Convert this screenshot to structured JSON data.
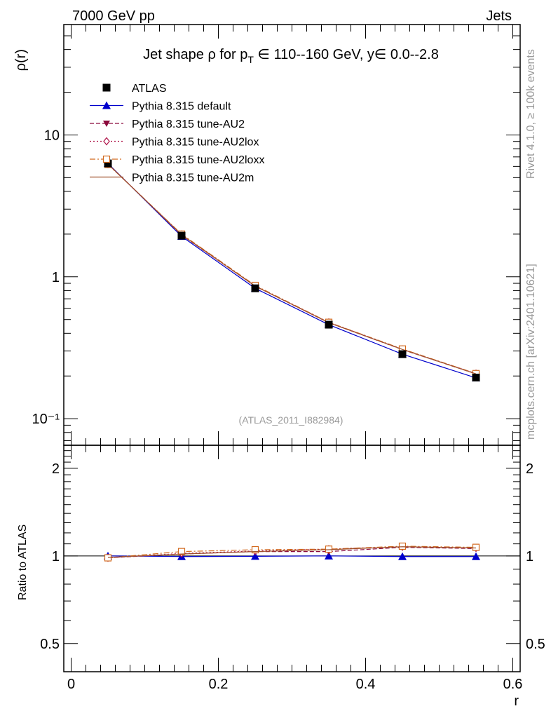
{
  "header": {
    "left": "7000 GeV pp",
    "right": "Jets"
  },
  "side_labels": {
    "rivet": "Rivet 4.1.0, ≥ 100k events",
    "mcplots": "mcplots.cern.ch [arXiv:2401.10621]"
  },
  "chart_data": [
    {
      "type": "line",
      "panel": "main",
      "title": "Jet shape ρ for p_T ∈ 110--160 GeV, y∈ 0.0--2.8",
      "title_parts": {
        "pre": "Jet shape ρ for p",
        "sub": "T",
        "post": " ∈ 110--160 GeV, y∈ 0.0--2.8"
      },
      "ylabel": "ρ(r)",
      "yscale": "log",
      "ylim": [
        0.065,
        60
      ],
      "xlim": [
        -0.01,
        0.61
      ],
      "yticks": [
        {
          "value": 10,
          "label": "10"
        },
        {
          "value": 1,
          "label": "1"
        },
        {
          "value": 0.1,
          "label": "10⁻¹"
        }
      ],
      "watermark": "(ATLAS_2011_I882984)",
      "x": [
        0.05,
        0.15,
        0.25,
        0.35,
        0.45,
        0.55
      ],
      "series": [
        {
          "name": "ATLAS",
          "color": "#000000",
          "marker": "square-filled",
          "line": "none",
          "values": [
            6.3,
            1.95,
            0.83,
            0.46,
            0.285,
            0.195
          ]
        },
        {
          "name": "Pythia 8.315 default",
          "color": "#0000cc",
          "marker": "triangle-up-filled",
          "line": "solid",
          "values": [
            6.3,
            1.93,
            0.83,
            0.46,
            0.285,
            0.194
          ]
        },
        {
          "name": "Pythia 8.315 tune-AU2",
          "color": "#8b0a3c",
          "marker": "triangle-down-filled",
          "line": "dashed",
          "values": [
            6.25,
            1.97,
            0.86,
            0.475,
            0.307,
            0.207
          ]
        },
        {
          "name": "Pythia 8.315 tune-AU2lox",
          "color": "#b0154a",
          "marker": "diamond-open",
          "line": "dotted",
          "values": [
            6.22,
            1.99,
            0.86,
            0.478,
            0.308,
            0.208
          ]
        },
        {
          "name": "Pythia 8.315 tune-AU2loxx",
          "color": "#d2691e",
          "marker": "square-open",
          "line": "dashdot",
          "values": [
            6.2,
            2.0,
            0.87,
            0.478,
            0.31,
            0.208
          ]
        },
        {
          "name": "Pythia 8.315 tune-AU2m",
          "color": "#a0522d",
          "marker": "none",
          "line": "solid",
          "values": [
            6.23,
            1.98,
            0.86,
            0.475,
            0.308,
            0.207
          ]
        }
      ]
    },
    {
      "type": "line",
      "panel": "ratio",
      "ylabel": "Ratio to ATLAS",
      "xlabel": "r",
      "yscale": "log",
      "ylim": [
        0.4,
        2.4
      ],
      "xlim": [
        -0.01,
        0.61
      ],
      "yticks": [
        {
          "value": 2,
          "label": "2"
        },
        {
          "value": 1,
          "label": "1"
        },
        {
          "value": 0.5,
          "label": "0.5"
        }
      ],
      "xticks": [
        {
          "value": 0,
          "label": "0"
        },
        {
          "value": 0.2,
          "label": "0.2"
        },
        {
          "value": 0.4,
          "label": "0.4"
        },
        {
          "value": 0.6,
          "label": "0.6"
        }
      ],
      "reference": 1,
      "x": [
        0.05,
        0.15,
        0.25,
        0.35,
        0.45,
        0.55
      ],
      "series": [
        {
          "name": "Pythia 8.315 default",
          "values": [
            1.0,
            0.995,
            0.997,
            1.0,
            0.995,
            0.995
          ]
        },
        {
          "name": "Pythia 8.315 tune-AU2",
          "values": [
            0.985,
            1.015,
            1.035,
            1.035,
            1.07,
            1.06
          ]
        },
        {
          "name": "Pythia 8.315 tune-AU2lox",
          "values": [
            0.985,
            1.02,
            1.04,
            1.055,
            1.075,
            1.065
          ]
        },
        {
          "name": "Pythia 8.315 tune-AU2loxx",
          "values": [
            0.985,
            1.035,
            1.05,
            1.055,
            1.08,
            1.07
          ]
        },
        {
          "name": "Pythia 8.315 tune-AU2m",
          "values": [
            0.988,
            1.015,
            1.035,
            1.05,
            1.075,
            1.065
          ]
        }
      ]
    }
  ]
}
